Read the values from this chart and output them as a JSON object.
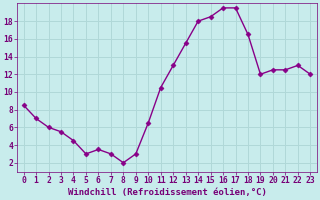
{
  "x": [
    0,
    1,
    2,
    3,
    4,
    5,
    6,
    7,
    8,
    9,
    10,
    11,
    12,
    13,
    14,
    15,
    16,
    17,
    18,
    19,
    20,
    21,
    22,
    23
  ],
  "y": [
    8.5,
    7.0,
    6.0,
    5.5,
    4.5,
    3.0,
    3.5,
    3.0,
    2.0,
    3.0,
    6.5,
    10.5,
    13.0,
    15.5,
    18.0,
    18.5,
    19.5,
    19.5,
    16.5,
    12.0,
    12.5,
    12.5,
    13.0,
    12.0
  ],
  "line_color": "#880088",
  "marker": "D",
  "marker_size": 2.5,
  "bg_color": "#c8ecec",
  "grid_color": "#b0d8d8",
  "xlabel": "Windchill (Refroidissement éolien,°C)",
  "ylabel": "",
  "ylim": [
    1,
    20
  ],
  "xlim": [
    -0.5,
    23.5
  ],
  "yticks": [
    2,
    4,
    6,
    8,
    10,
    12,
    14,
    16,
    18
  ],
  "xticks": [
    0,
    1,
    2,
    3,
    4,
    5,
    6,
    7,
    8,
    9,
    10,
    11,
    12,
    13,
    14,
    15,
    16,
    17,
    18,
    19,
    20,
    21,
    22,
    23
  ],
  "font_color": "#770077",
  "tick_fontsize": 5.8,
  "xlabel_fontsize": 6.5,
  "linewidth": 1.0
}
